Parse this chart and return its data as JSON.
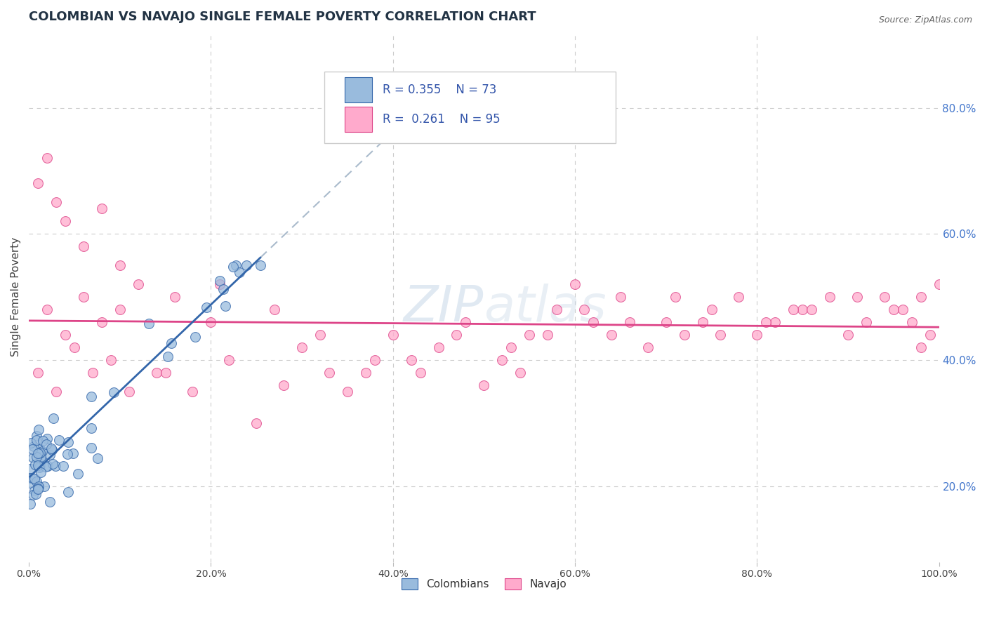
{
  "title": "COLOMBIAN VS NAVAJO SINGLE FEMALE POVERTY CORRELATION CHART",
  "source": "Source: ZipAtlas.com",
  "ylabel": "Single Female Poverty",
  "xlim": [
    0.0,
    1.0
  ],
  "ylim": [
    0.08,
    0.92
  ],
  "yticks_right": [
    0.2,
    0.4,
    0.6,
    0.8
  ],
  "ytick_labels_right": [
    "20.0%",
    "40.0%",
    "60.0%",
    "80.0%"
  ],
  "grid_color": "#cccccc",
  "background_color": "#ffffff",
  "legend_R1": "0.355",
  "legend_N1": "73",
  "legend_R2": "0.261",
  "legend_N2": "95",
  "colombian_color": "#99bbdd",
  "navajo_color": "#ffaacc",
  "colombian_line_color": "#3366aa",
  "navajo_line_color": "#dd4488",
  "dashed_line_color": "#aabbcc"
}
